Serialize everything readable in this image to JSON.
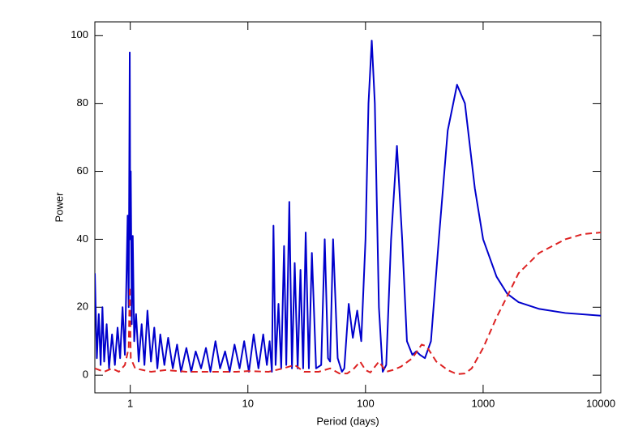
{
  "chart_data": {
    "type": "line",
    "xlabel": "Period (days)",
    "ylabel": "Power",
    "xscale": "log",
    "xlim": [
      0.5,
      10000
    ],
    "xticks": [
      1,
      10,
      100,
      1000,
      10000
    ],
    "ylim": [
      -5.2,
      104
    ],
    "yticks": [
      0,
      20,
      40,
      60,
      80,
      100
    ],
    "grid": false,
    "series": [
      {
        "color": "#0000cc",
        "style": "solid",
        "x": [
          0.5,
          0.52,
          0.54,
          0.56,
          0.58,
          0.6,
          0.63,
          0.66,
          0.7,
          0.74,
          0.78,
          0.82,
          0.86,
          0.9,
          0.93,
          0.95,
          0.97,
          0.99,
          1.0,
          1.01,
          1.03,
          1.05,
          1.08,
          1.12,
          1.18,
          1.25,
          1.32,
          1.4,
          1.5,
          1.6,
          1.7,
          1.8,
          1.95,
          2.1,
          2.3,
          2.5,
          2.7,
          3.0,
          3.3,
          3.6,
          4.0,
          4.4,
          4.8,
          5.3,
          5.8,
          6.4,
          7.0,
          7.7,
          8.5,
          9.3,
          10.2,
          11.2,
          12.3,
          13.5,
          14.5,
          15.3,
          16.0,
          16.5,
          17.2,
          18.2,
          19.2,
          20.3,
          21.2,
          22.5,
          23.7,
          25,
          26.5,
          28,
          29.5,
          31,
          33,
          35,
          38,
          42,
          45,
          48,
          50,
          53,
          58,
          63,
          66,
          72,
          78,
          85,
          92,
          100,
          106,
          113,
          120,
          130,
          140,
          150,
          165,
          185,
          205,
          225,
          250,
          270,
          290,
          320,
          360,
          420,
          500,
          600,
          700,
          850,
          1000,
          1300,
          1600,
          2000,
          3000,
          5000,
          10000
        ],
        "values": [
          30,
          5,
          18,
          3,
          20,
          4,
          15,
          2,
          12,
          3,
          14,
          5,
          20,
          6,
          30,
          47,
          20,
          95,
          40,
          60,
          15,
          41,
          10,
          18,
          4,
          15,
          3,
          19,
          4,
          14,
          2,
          12,
          3,
          11,
          2,
          9,
          1,
          8,
          1,
          7,
          2,
          8,
          1,
          10,
          2,
          7,
          1,
          9,
          2,
          10,
          1,
          12,
          2,
          12,
          3,
          10,
          1,
          44,
          3,
          21,
          2,
          38,
          3,
          51,
          2,
          33,
          2,
          31,
          2,
          42,
          2,
          36,
          2,
          3,
          40,
          5,
          4,
          40,
          5,
          1,
          2,
          21,
          11,
          19,
          10,
          40,
          80,
          98.5,
          80,
          20,
          1,
          3,
          40,
          67.5,
          40,
          10,
          6,
          7,
          6,
          5,
          10,
          40,
          72,
          85.5,
          80,
          55,
          40,
          29,
          24,
          21.5,
          19.5,
          18.3,
          17.5
        ]
      },
      {
        "color": "#dd2222",
        "style": "dashed",
        "x": [
          0.5,
          0.6,
          0.7,
          0.8,
          0.9,
          0.97,
          0.99,
          1.01,
          1.1,
          1.5,
          2,
          3,
          5,
          8,
          10,
          15,
          20,
          25,
          30,
          40,
          50,
          60,
          70,
          80,
          90,
          100,
          110,
          130,
          150,
          170,
          200,
          250,
          300,
          330,
          400,
          500,
          600,
          700,
          800,
          1000,
          1300,
          1700,
          2000,
          3000,
          5000,
          7000,
          10000
        ],
        "values": [
          2,
          1,
          2,
          1,
          3,
          8,
          26,
          5,
          2,
          1,
          1.5,
          1,
          1,
          1,
          1.2,
          1,
          2,
          3,
          1,
          1,
          2,
          0.5,
          0.5,
          2,
          4,
          1.5,
          0.8,
          4,
          1,
          1.5,
          2.5,
          5,
          9,
          8.5,
          4,
          1.5,
          0.3,
          0.5,
          2,
          8,
          17,
          25,
          30,
          36,
          40,
          41.5,
          42
        ]
      }
    ]
  }
}
